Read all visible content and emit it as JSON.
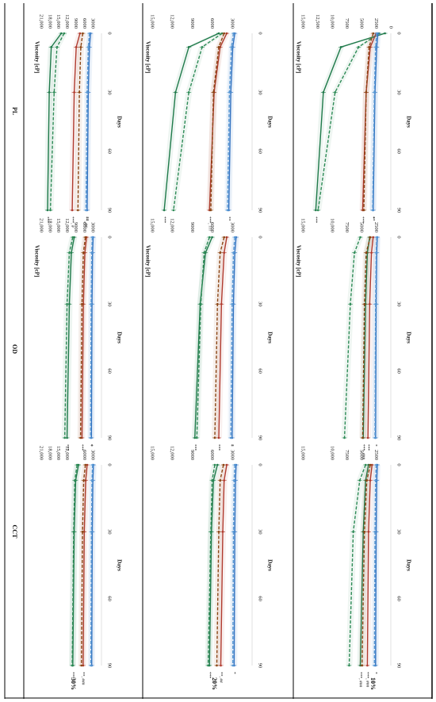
{
  "table": {
    "col_headers": [
      "CCT",
      "OD",
      "PL"
    ],
    "row_headers": [
      "10%",
      "20%",
      "30%"
    ]
  },
  "chart_data": [
    {
      "type": "line",
      "row": "10%",
      "col": "CCT",
      "xlabel": "Days",
      "ylabel": "",
      "x": [
        0,
        7,
        30,
        90
      ],
      "xticks": [
        "0",
        "30",
        "60",
        "90"
      ],
      "yticks": [
        "2500",
        "5000",
        "7500",
        "10,000",
        "15,000"
      ],
      "ylim": [
        0,
        15000
      ],
      "series": [
        {
          "color": "#1f7a4a",
          "dash": false,
          "values": [
            3800,
            4300,
            4700,
            5200
          ]
        },
        {
          "color": "#2e8b57",
          "dash": true,
          "values": [
            4300,
            5300,
            6400,
            7100
          ]
        },
        {
          "color": "#b03a2e",
          "dash": false,
          "values": [
            3200,
            3500,
            3800,
            4000
          ]
        },
        {
          "color": "#8b4513",
          "dash": true,
          "values": [
            3500,
            4100,
            4500,
            4900
          ]
        },
        {
          "color": "#2f6fbf",
          "dash": false,
          "values": [
            2300,
            2400,
            2500,
            2600
          ]
        },
        {
          "color": "#5b9bd5",
          "dash": true,
          "values": [
            2500,
            2600,
            2700,
            2800
          ]
        }
      ],
      "annotations": [
        "***, ###",
        "***, ###",
        "*"
      ]
    },
    {
      "type": "line",
      "row": "10%",
      "col": "OD",
      "xlabel": "Days",
      "ylabel": "Viscosity [cP]",
      "x": [
        0,
        7,
        30,
        90
      ],
      "xticks": [
        "0",
        "30",
        "60",
        "90"
      ],
      "yticks": [
        "2500",
        "5000",
        "7500",
        "10,000",
        "15,000"
      ],
      "ylim": [
        0,
        15000
      ],
      "series": [
        {
          "color": "#1f7a4a",
          "dash": false,
          "values": [
            3600,
            4000,
            4300,
            4700
          ]
        },
        {
          "color": "#2e8b57",
          "dash": true,
          "values": [
            5200,
            6200,
            6900,
            7900
          ]
        },
        {
          "color": "#b03a2e",
          "dash": false,
          "values": [
            3000,
            3300,
            3600,
            3900
          ]
        },
        {
          "color": "#8b4513",
          "dash": true,
          "values": [
            3500,
            4200,
            4500,
            4800
          ]
        },
        {
          "color": "#2f6fbf",
          "dash": false,
          "values": [
            2300,
            2400,
            2500,
            2600
          ]
        },
        {
          "color": "#5b9bd5",
          "dash": true,
          "values": [
            2400,
            2500,
            2600,
            2700
          ]
        }
      ],
      "annotations": [
        "***, ###",
        "***",
        "*"
      ]
    },
    {
      "type": "line",
      "row": "10%",
      "col": "PL",
      "xlabel": "Days",
      "ylabel": "Viscosity [cP]",
      "x": [
        0,
        7,
        30,
        90
      ],
      "xticks": [
        "0",
        "30",
        "60",
        "90"
      ],
      "yticks": [
        "0",
        "2500",
        "5000",
        "7500",
        "10,000",
        "12,500",
        "15,000"
      ],
      "ylim": [
        0,
        15000
      ],
      "series": [
        {
          "color": "#1f7a4a",
          "dash": false,
          "values": [
            1000,
            8500,
            11500,
            12800
          ]
        },
        {
          "color": "#2e8b57",
          "dash": true,
          "values": [
            2000,
            5500,
            9500,
            12400
          ]
        },
        {
          "color": "#b03a2e",
          "dash": false,
          "values": [
            2500,
            3500,
            4200,
            4800
          ]
        },
        {
          "color": "#8b4513",
          "dash": true,
          "values": [
            3000,
            3700,
            4200,
            4600
          ]
        },
        {
          "color": "#2f6fbf",
          "dash": false,
          "values": [
            2200,
            2400,
            2700,
            3000
          ]
        },
        {
          "color": "#5b9bd5",
          "dash": true,
          "values": [
            2400,
            2600,
            2800,
            3100
          ]
        }
      ],
      "annotations": [
        "***",
        "***",
        "**",
        "*"
      ]
    },
    {
      "type": "line",
      "row": "20%",
      "col": "CCT",
      "xlabel": "Days",
      "ylabel": "",
      "x": [
        0,
        7,
        30,
        90
      ],
      "xticks": [
        "0",
        "30",
        "60",
        "90"
      ],
      "yticks": [
        "3000",
        "6000",
        "9000",
        "12,000",
        "15,000"
      ],
      "ylim": [
        0,
        15000
      ],
      "series": [
        {
          "color": "#1f7a4a",
          "dash": false,
          "values": [
            5200,
            5800,
            6100,
            6400
          ]
        },
        {
          "color": "#2e8b57",
          "dash": true,
          "values": [
            5600,
            6000,
            6200,
            6600
          ]
        },
        {
          "color": "#b03a2e",
          "dash": false,
          "values": [
            3800,
            4200,
            4400,
            4700
          ]
        },
        {
          "color": "#8b4513",
          "dash": true,
          "values": [
            4300,
            4800,
            5000,
            5300
          ]
        },
        {
          "color": "#2f6fbf",
          "dash": false,
          "values": [
            2400,
            2500,
            2600,
            2700
          ]
        },
        {
          "color": "#5b9bd5",
          "dash": true,
          "values": [
            2600,
            2700,
            2800,
            2900
          ]
        }
      ],
      "annotations": [
        "***",
        "**, ##",
        "*"
      ]
    },
    {
      "type": "line",
      "row": "20%",
      "col": "OD",
      "xlabel": "Days",
      "ylabel": "Viscosity [cP]",
      "x": [
        0,
        7,
        30,
        90
      ],
      "xticks": [
        "0",
        "30",
        "60",
        "90"
      ],
      "yticks": [
        "3000",
        "6000",
        "9000",
        "12,000",
        "15,000"
      ],
      "ylim": [
        0,
        15000
      ],
      "series": [
        {
          "color": "#1f7a4a",
          "dash": false,
          "values": [
            6000,
            7000,
            7800,
            8600
          ]
        },
        {
          "color": "#2e8b57",
          "dash": true,
          "values": [
            6400,
            7200,
            7700,
            8300
          ]
        },
        {
          "color": "#b03a2e",
          "dash": false,
          "values": [
            3800,
            4200,
            4600,
            5000
          ]
        },
        {
          "color": "#8b4513",
          "dash": true,
          "values": [
            4200,
            4800,
            5200,
            5600
          ]
        },
        {
          "color": "#2f6fbf",
          "dash": false,
          "values": [
            2400,
            2600,
            2800,
            3000
          ]
        },
        {
          "color": "#5b9bd5",
          "dash": true,
          "values": [
            2600,
            2800,
            3000,
            3200
          ]
        }
      ],
      "annotations": [
        "***",
        "***",
        "*",
        "*"
      ]
    },
    {
      "type": "line",
      "row": "20%",
      "col": "PL",
      "xlabel": "Days",
      "ylabel": "Viscosity [cP]",
      "x": [
        0,
        7,
        30,
        90
      ],
      "xticks": [
        "0",
        "30",
        "60",
        "90"
      ],
      "yticks": [
        "3000",
        "6000",
        "9000",
        "12,000",
        "15,000"
      ],
      "ylim": [
        0,
        15000
      ],
      "series": [
        {
          "color": "#1f7a4a",
          "dash": false,
          "values": [
            5000,
            9500,
            11500,
            13200
          ]
        },
        {
          "color": "#2e8b57",
          "dash": true,
          "values": [
            4500,
            7500,
            9500,
            11800
          ]
        },
        {
          "color": "#b03a2e",
          "dash": false,
          "values": [
            3800,
            4800,
            5700,
            6400
          ]
        },
        {
          "color": "#8b4513",
          "dash": true,
          "values": [
            4200,
            5000,
            5800,
            6200
          ]
        },
        {
          "color": "#2f6fbf",
          "dash": false,
          "values": [
            2600,
            2900,
            3200,
            3500
          ]
        },
        {
          "color": "#5b9bd5",
          "dash": true,
          "values": [
            2800,
            3100,
            3400,
            3700
          ]
        }
      ],
      "annotations": [
        "***",
        "***, ???",
        "**"
      ]
    },
    {
      "type": "line",
      "row": "30%",
      "col": "CCT",
      "xlabel": "Days",
      "ylabel": "",
      "x": [
        0,
        7,
        30,
        90
      ],
      "xticks": [
        "0",
        "30",
        "60",
        "90"
      ],
      "yticks": [
        "3000",
        "6000",
        "12,000",
        "15,000",
        "18,000",
        "21,000"
      ],
      "ylim": [
        0,
        21000
      ],
      "series": [
        {
          "color": "#1f7a4a",
          "dash": false,
          "values": [
            8000,
            9000,
            9500,
            10000
          ]
        },
        {
          "color": "#2e8b57",
          "dash": true,
          "values": [
            8500,
            9300,
            9700,
            10200
          ]
        },
        {
          "color": "#b03a2e",
          "dash": false,
          "values": [
            5000,
            5500,
            6000,
            6400
          ]
        },
        {
          "color": "#8b4513",
          "dash": true,
          "values": [
            5600,
            6200,
            6600,
            7000
          ]
        },
        {
          "color": "#2f6fbf",
          "dash": false,
          "values": [
            2800,
            3000,
            3200,
            3400
          ]
        },
        {
          "color": "#5b9bd5",
          "dash": true,
          "values": [
            3100,
            3300,
            3500,
            3700
          ]
        }
      ],
      "annotations": [
        "***",
        "**, ###"
      ]
    },
    {
      "type": "line",
      "row": "30%",
      "col": "OD",
      "xlabel": "Days",
      "ylabel": "Viscosity [cP]",
      "x": [
        0,
        7,
        30,
        90
      ],
      "xticks": [
        "0",
        "30",
        "60",
        "90"
      ],
      "yticks": [
        "3000",
        "6000",
        "9000",
        "12,000",
        "15,000",
        "18,000",
        "21,000"
      ],
      "ylim": [
        0,
        21000
      ],
      "series": [
        {
          "color": "#1f7a4a",
          "dash": false,
          "values": [
            9500,
            10500,
            11200,
            12000
          ]
        },
        {
          "color": "#2e8b57",
          "dash": true,
          "values": [
            10000,
            11200,
            12000,
            12800
          ]
        },
        {
          "color": "#b03a2e",
          "dash": false,
          "values": [
            5200,
            5800,
            6300,
            6800
          ]
        },
        {
          "color": "#8b4513",
          "dash": true,
          "values": [
            5600,
            6300,
            6800,
            7300
          ]
        },
        {
          "color": "#2f6fbf",
          "dash": false,
          "values": [
            2900,
            3100,
            3300,
            3500
          ]
        },
        {
          "color": "#5b9bd5",
          "dash": true,
          "values": [
            3200,
            3400,
            3600,
            3800
          ]
        }
      ],
      "annotations": [
        "***",
        "***",
        "*",
        "*"
      ]
    },
    {
      "type": "line",
      "row": "30%",
      "col": "PL",
      "xlabel": "Days",
      "ylabel": "Viscosity [cP]",
      "x": [
        0,
        7,
        30,
        90
      ],
      "xticks": [
        "0",
        "30",
        "60",
        "90"
      ],
      "yticks": [
        "3000",
        "6000",
        "9000",
        "12,000",
        "15,000",
        "18,000",
        "21,000"
      ],
      "ylim": [
        0,
        21000
      ],
      "series": [
        {
          "color": "#1f7a4a",
          "dash": false,
          "values": [
            14000,
            17500,
            18200,
            18800
          ]
        },
        {
          "color": "#2e8b57",
          "dash": true,
          "values": [
            13000,
            15500,
            16500,
            17800
          ]
        },
        {
          "color": "#b03a2e",
          "dash": false,
          "values": [
            7500,
            8800,
            9500,
            10200
          ]
        },
        {
          "color": "#8b4513",
          "dash": true,
          "values": [
            6500,
            7200,
            7700,
            8200
          ]
        },
        {
          "color": "#2f6fbf",
          "dash": false,
          "values": [
            3800,
            4200,
            4600,
            5000
          ]
        },
        {
          "color": "#5b9bd5",
          "dash": true,
          "values": [
            4200,
            4600,
            5000,
            5400
          ]
        }
      ],
      "annotations": [
        "***",
        "***, #",
        "**",
        "**, ##"
      ]
    }
  ]
}
